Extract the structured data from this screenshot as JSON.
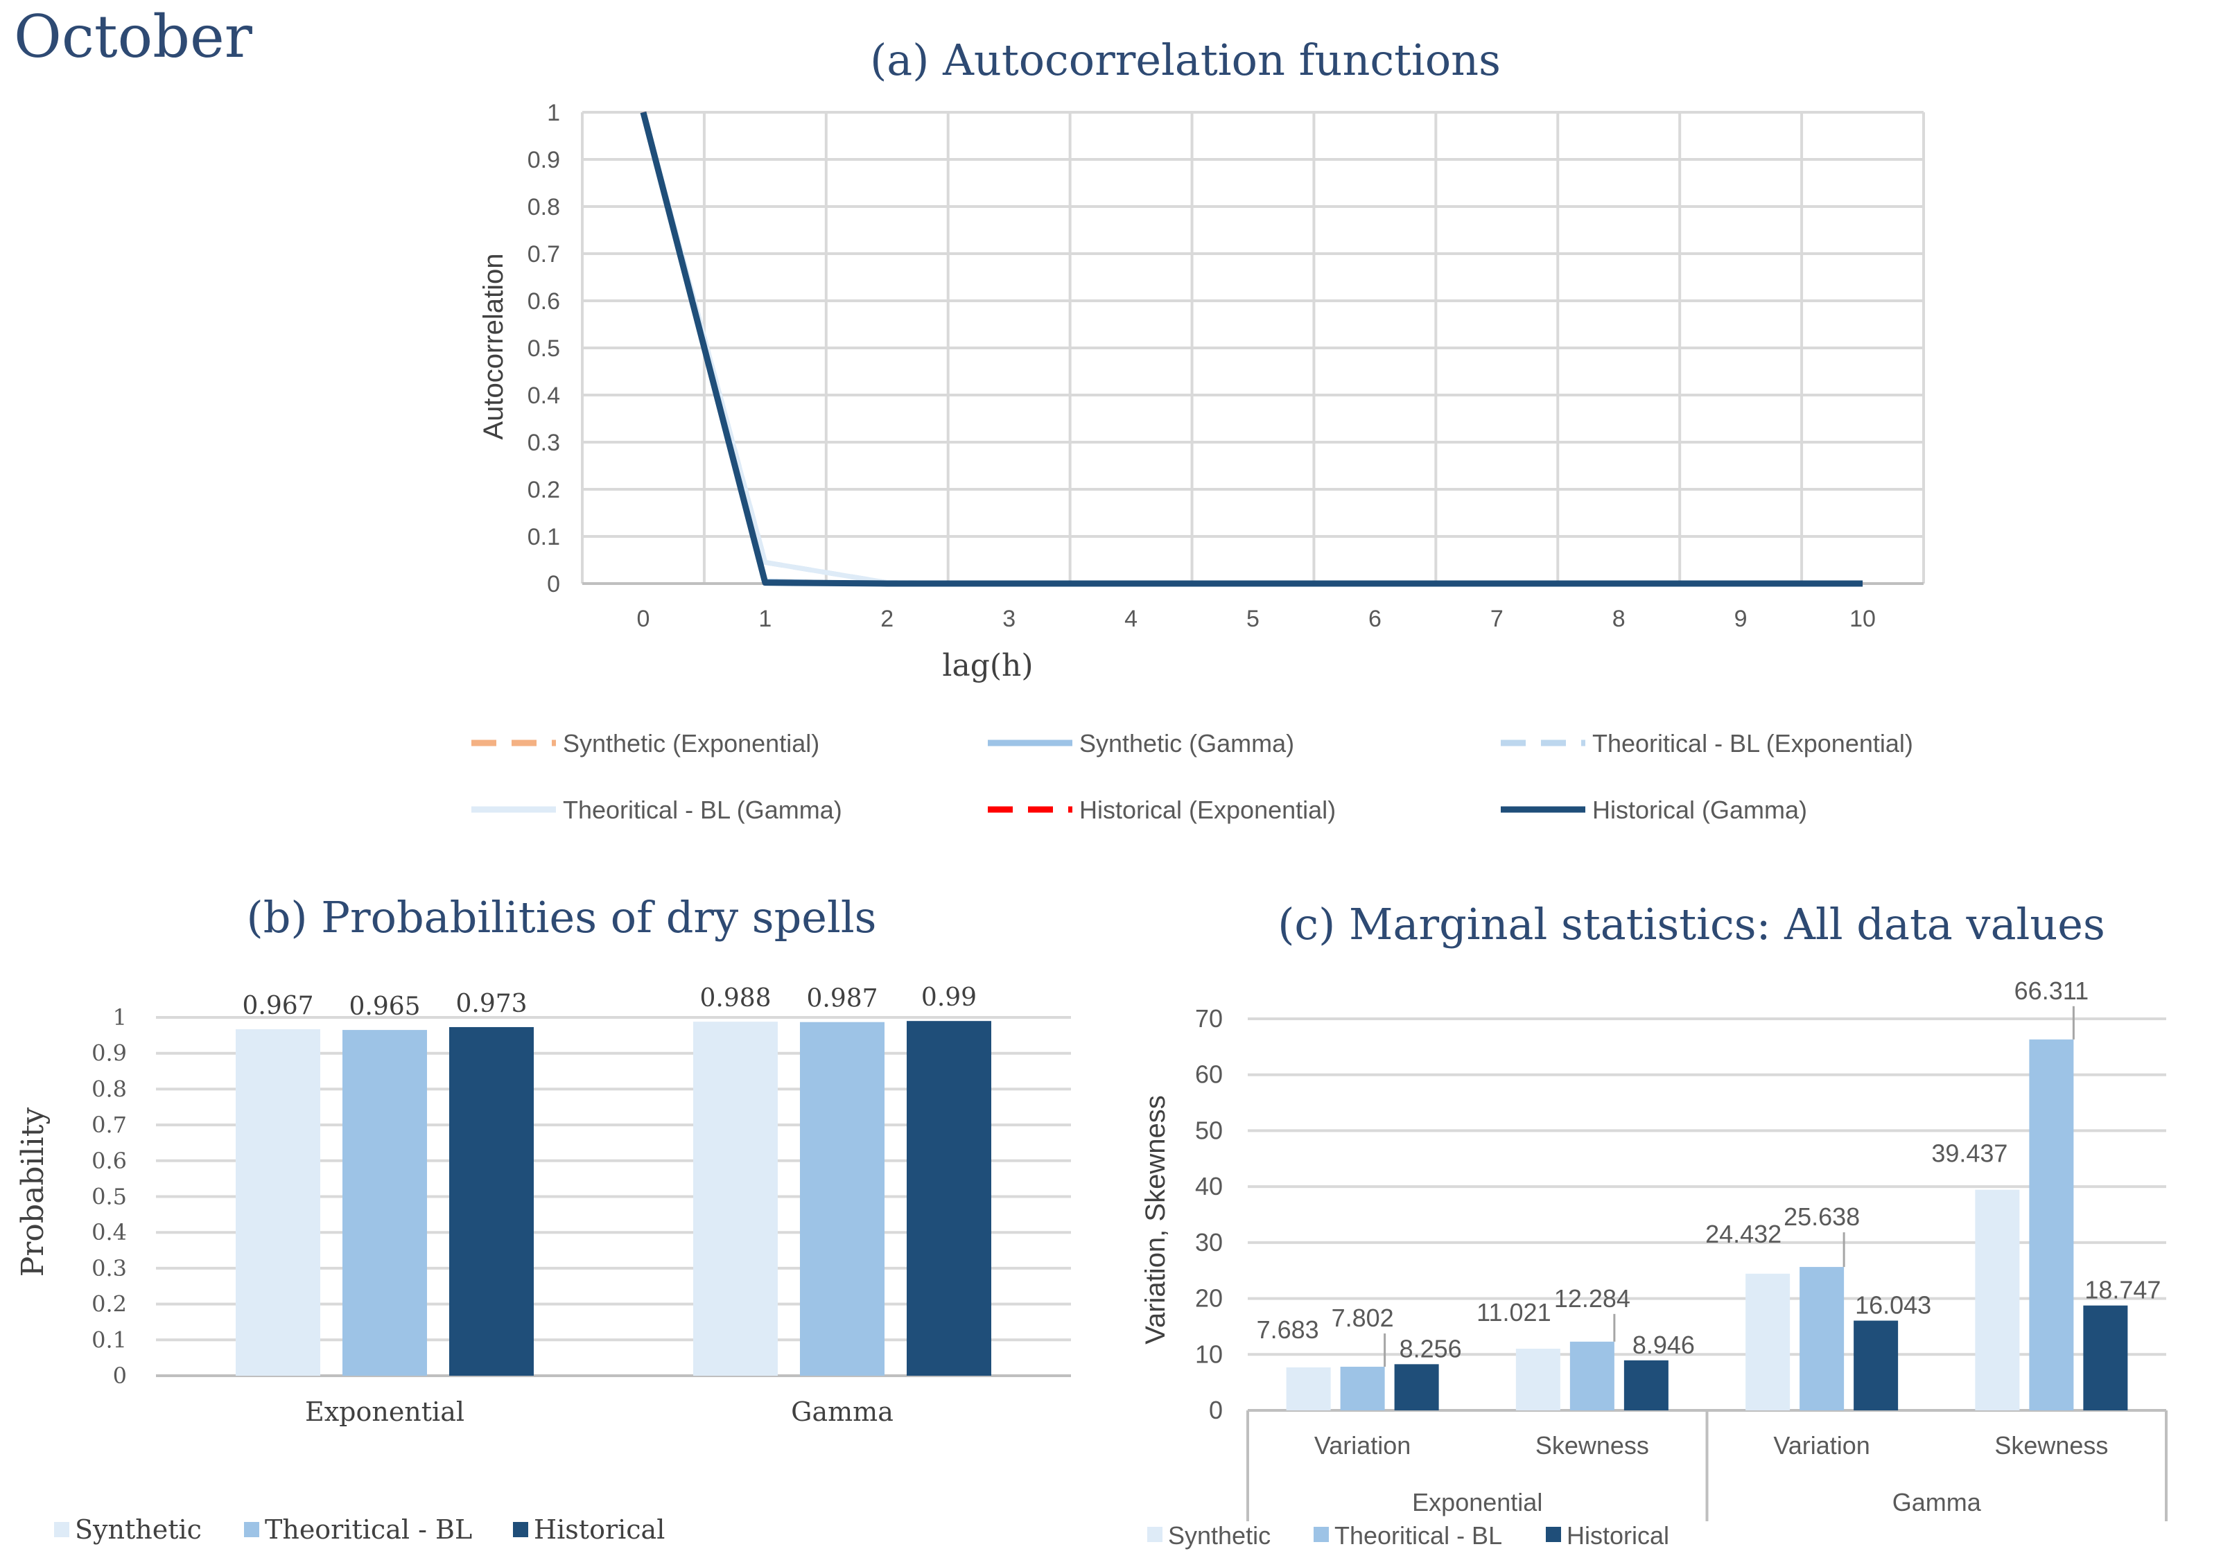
{
  "page": {
    "title": "October"
  },
  "chart_data": [
    {
      "id": "a",
      "type": "line",
      "title": "(a) Autocorrelation functions",
      "xlabel": "lag(h)",
      "ylabel": "Autocorrelation",
      "x": [
        0,
        1,
        2,
        3,
        4,
        5,
        6,
        7,
        8,
        9,
        10
      ],
      "ylim": [
        0,
        1
      ],
      "yticks": [
        "0",
        "0.1",
        "0.2",
        "0.3",
        "0.4",
        "0.5",
        "0.6",
        "0.7",
        "0.8",
        "0.9",
        "1"
      ],
      "xticks": [
        "0",
        "1",
        "2",
        "3",
        "4",
        "5",
        "6",
        "7",
        "8",
        "9",
        "10"
      ],
      "legend_position": "bottom",
      "series": [
        {
          "name": "Synthetic (Exponential)",
          "color": "#f4b183",
          "dash": true,
          "values": [
            1,
            0.005,
            0,
            0,
            0,
            0,
            0,
            0,
            0,
            0,
            0
          ]
        },
        {
          "name": "Synthetic (Gamma)",
          "color": "#9dc3e6",
          "dash": false,
          "values": [
            1,
            0.005,
            0,
            0,
            0,
            0,
            0,
            0,
            0,
            0,
            0
          ]
        },
        {
          "name": "Theoritical - BL (Exponential)",
          "color": "#bdd7ee",
          "dash": true,
          "values": [
            1,
            0.045,
            0.002,
            0,
            0,
            0,
            0,
            0,
            0,
            0,
            0
          ]
        },
        {
          "name": "Theoritical - BL (Gamma)",
          "color": "#deebf7",
          "dash": false,
          "values": [
            1,
            0.045,
            0.002,
            0,
            0,
            0,
            0,
            0,
            0,
            0,
            0
          ]
        },
        {
          "name": "Historical (Exponential)",
          "color": "#ff0000",
          "dash": true,
          "values": [
            1,
            0.002,
            0,
            0,
            0,
            0,
            0,
            0,
            0,
            0,
            0
          ]
        },
        {
          "name": "Historical (Gamma)",
          "color": "#1f4e79",
          "dash": false,
          "values": [
            1,
            0.002,
            0,
            0,
            0,
            0,
            0,
            0,
            0,
            0,
            0
          ]
        }
      ]
    },
    {
      "id": "b",
      "type": "bar",
      "title": "(b) Probabilities of dry spells",
      "xlabel": "",
      "ylabel": "Probability",
      "ylim": [
        0,
        1
      ],
      "yticks": [
        "0",
        "0.1",
        "0.2",
        "0.3",
        "0.4",
        "0.5",
        "0.6",
        "0.7",
        "0.8",
        "0.9",
        "1"
      ],
      "categories": [
        "Exponential",
        "Gamma"
      ],
      "legend_position": "bottom",
      "series": [
        {
          "name": "Synthetic",
          "color": "#deebf7",
          "values": [
            0.967,
            0.988
          ],
          "labels": [
            "0.967",
            "0.988"
          ]
        },
        {
          "name": "Theoritical - BL",
          "color": "#9dc3e6",
          "values": [
            0.965,
            0.987
          ],
          "labels": [
            "0.965",
            "0.987"
          ]
        },
        {
          "name": "Historical",
          "color": "#1f4e79",
          "values": [
            0.973,
            0.99
          ],
          "labels": [
            "0.973",
            "0.99"
          ]
        }
      ]
    },
    {
      "id": "c",
      "type": "bar",
      "title": "(c) Marginal statistics: All data values",
      "xlabel": "",
      "ylabel": "Variation, Skewness",
      "ylim": [
        0,
        70
      ],
      "yticks": [
        "0",
        "10",
        "20",
        "30",
        "40",
        "50",
        "60",
        "70"
      ],
      "categories": [
        "Variation",
        "Skewness",
        "Variation",
        "Skewness"
      ],
      "groups": [
        "Exponential",
        "Gamma"
      ],
      "legend_position": "bottom",
      "series": [
        {
          "name": "Synthetic",
          "color": "#deebf7",
          "values": [
            7.683,
            11.021,
            24.432,
            39.437
          ],
          "labels": [
            "7.683",
            "11.021",
            "24.432",
            "39.437"
          ]
        },
        {
          "name": "Theoritical - BL",
          "color": "#9dc3e6",
          "values": [
            7.802,
            12.284,
            25.638,
            66.311
          ],
          "labels": [
            "7.802",
            "12.284",
            "25.638",
            "66.311"
          ]
        },
        {
          "name": "Historical",
          "color": "#1f4e79",
          "values": [
            8.256,
            8.946,
            16.043,
            18.747
          ],
          "labels": [
            "8.256",
            "8.946",
            "16.043",
            "18.747"
          ]
        }
      ]
    }
  ]
}
